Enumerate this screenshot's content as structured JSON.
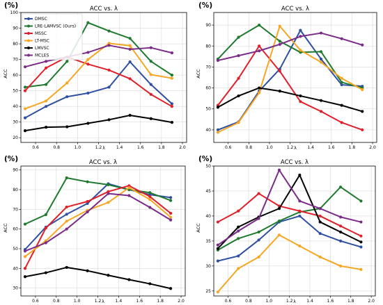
{
  "unit_label": "(%)",
  "colors": {
    "DMSC": "#2f4fa2",
    "LRE-LAMVSC (Ours)": "#1e7a2e",
    "MSSC": "#e01f2a",
    "LT-MSC": "#f5a623",
    "LMVSC": "#000000",
    "MCLES": "#7a2b87"
  },
  "chart_data": [
    {
      "type": "line",
      "title": "ACC vs. λ",
      "xlabel": "λ",
      "ylabel": "ACC",
      "x": [
        0.5,
        0.7,
        0.9,
        1.1,
        1.3,
        1.5,
        1.7,
        1.9
      ],
      "xticks": [
        0.6,
        0.8,
        1.0,
        1.2,
        1.4,
        1.6,
        1.8,
        2.0
      ],
      "xticklabels": [
        "0.6",
        "0.8",
        "1.0",
        "1.2",
        "1.4",
        "1.6",
        "1.8",
        "2.0"
      ],
      "xlim": [
        0.46,
        2.04
      ],
      "ylim": [
        17,
        100
      ],
      "yticks": [
        20,
        30,
        40,
        50,
        60,
        70,
        80,
        90,
        100
      ],
      "yticklabels": [
        "20",
        "30",
        "40",
        "50",
        "60",
        "70",
        "80",
        "90",
        "100"
      ],
      "grid": true,
      "legend": "top-left",
      "series": [
        {
          "name": "DMSC",
          "values": [
            32.7,
            40.0,
            46.2,
            48.5,
            52.3,
            68.5,
            54.0,
            41.7
          ]
        },
        {
          "name": "LRE-LAMVSC (Ours)",
          "values": [
            52.3,
            54.0,
            68.8,
            93.5,
            88.2,
            83.5,
            68.8,
            60.0
          ]
        },
        {
          "name": "MSSC",
          "values": [
            50.0,
            64.6,
            71.6,
            67.0,
            63.2,
            57.7,
            47.7,
            40.0
          ]
        },
        {
          "name": "LT-MSC",
          "values": [
            38.5,
            43.5,
            55.0,
            70.0,
            80.3,
            78.8,
            60.3,
            58.0
          ]
        },
        {
          "name": "LMVSC",
          "values": [
            24.5,
            26.7,
            27.0,
            29.2,
            31.5,
            34.3,
            32.2,
            29.8
          ]
        },
        {
          "name": "MCLES",
          "values": [
            65.3,
            68.8,
            71.6,
            74.5,
            79.0,
            76.5,
            77.5,
            74.2
          ]
        }
      ]
    },
    {
      "type": "line",
      "title": "ACC vs. λ",
      "xlabel": "λ",
      "ylabel": "ACC",
      "x": [
        0.5,
        0.7,
        0.9,
        1.1,
        1.3,
        1.5,
        1.7,
        1.9
      ],
      "xticks": [
        0.6,
        0.8,
        1.0,
        1.2,
        1.4,
        1.6,
        1.8,
        2.0
      ],
      "xticklabels": [
        "0.6",
        "0.8",
        "1.0",
        "1.2",
        "1.4",
        "1.6",
        "1.8",
        "2.0"
      ],
      "xlim": [
        0.46,
        2.04
      ],
      "ylim": [
        34,
        96
      ],
      "yticks": [
        40,
        50,
        60,
        70,
        80,
        90
      ],
      "yticklabels": [
        "40",
        "50",
        "60",
        "70",
        "80",
        "90"
      ],
      "grid": true,
      "legend": "none",
      "series": [
        {
          "name": "DMSC",
          "values": [
            40.0,
            43.8,
            58.5,
            69.0,
            87.5,
            73.8,
            61.5,
            60.8
          ]
        },
        {
          "name": "LRE-LAMVSC (Ours)",
          "values": [
            73.8,
            84.2,
            90.0,
            82.3,
            77.0,
            77.3,
            62.7,
            60.0
          ]
        },
        {
          "name": "MSSC",
          "values": [
            51.7,
            64.6,
            80.0,
            68.0,
            53.5,
            48.8,
            43.5,
            40.0
          ]
        },
        {
          "name": "LT-MSC",
          "values": [
            38.8,
            43.5,
            57.7,
            89.5,
            78.0,
            72.3,
            64.6,
            59.2
          ]
        },
        {
          "name": "LMVSC",
          "values": [
            50.8,
            56.2,
            60.0,
            58.5,
            56.2,
            54.0,
            51.7,
            48.8
          ]
        },
        {
          "name": "MCLES",
          "values": [
            73.1,
            75.4,
            77.7,
            80.8,
            84.6,
            86.2,
            83.5,
            80.5
          ]
        }
      ]
    },
    {
      "type": "line",
      "title": "ACC vs. λ",
      "xlabel": "λ",
      "ylabel": "ACC",
      "x": [
        0.5,
        0.7,
        0.9,
        1.1,
        1.3,
        1.5,
        1.7,
        1.9
      ],
      "xticks": [
        0.6,
        0.8,
        1.0,
        1.2,
        1.4,
        1.6,
        1.8,
        2.0
      ],
      "xticklabels": [
        "0.6",
        "0.8",
        "1.0",
        "1.2",
        "1.4",
        "1.6",
        "1.8",
        "2.0"
      ],
      "xlim": [
        0.46,
        2.04
      ],
      "ylim": [
        26,
        92
      ],
      "yticks": [
        30,
        40,
        50,
        60,
        70,
        80,
        90
      ],
      "yticklabels": [
        "30",
        "40",
        "50",
        "60",
        "70",
        "80",
        "90"
      ],
      "grid": true,
      "legend": "none",
      "series": [
        {
          "name": "DMSC",
          "values": [
            49.6,
            61.0,
            67.5,
            73.0,
            83.0,
            80.0,
            77.5,
            76.0
          ]
        },
        {
          "name": "LRE-LAMVSC (Ours)",
          "values": [
            62.5,
            67.3,
            86.0,
            84.0,
            82.5,
            80.0,
            78.5,
            74.5
          ]
        },
        {
          "name": "MSSC",
          "values": [
            40.0,
            60.5,
            71.2,
            74.0,
            79.0,
            82.0,
            76.5,
            68.0
          ]
        },
        {
          "name": "LT-MSC",
          "values": [
            46.0,
            54.0,
            64.0,
            69.5,
            73.5,
            81.0,
            75.0,
            66.0
          ]
        },
        {
          "name": "LMVSC",
          "values": [
            35.8,
            37.8,
            40.5,
            38.8,
            36.5,
            34.3,
            32.2,
            29.8
          ]
        },
        {
          "name": "MCLES",
          "values": [
            48.8,
            53.0,
            60.0,
            68.7,
            78.0,
            77.0,
            71.0,
            64.6
          ]
        }
      ]
    },
    {
      "type": "line",
      "title": "ACC vs. λ",
      "xlabel": "λ",
      "ylabel": "ACC",
      "x": [
        0.5,
        0.7,
        0.9,
        1.1,
        1.3,
        1.5,
        1.7,
        1.9
      ],
      "xticks": [
        0.6,
        0.8,
        1.0,
        1.2,
        1.4,
        1.6,
        1.8,
        2.0
      ],
      "xticklabels": [
        "0.6",
        "0.8",
        "1.0",
        "1.2",
        "1.4",
        "1.6",
        "1.8",
        "2.0"
      ],
      "xlim": [
        0.46,
        2.04
      ],
      "ylim": [
        24,
        50
      ],
      "yticks": [
        25,
        30,
        35,
        40,
        45,
        50
      ],
      "yticklabels": [
        "25",
        "30",
        "35",
        "40",
        "45",
        "50"
      ],
      "grid": true,
      "legend": "none",
      "series": [
        {
          "name": "DMSC",
          "values": [
            31.0,
            32.0,
            35.2,
            38.8,
            40.0,
            36.5,
            35.0,
            33.8
          ]
        },
        {
          "name": "LRE-LAMVSC (Ours)",
          "values": [
            33.2,
            35.5,
            36.8,
            39.0,
            40.8,
            41.5,
            45.8,
            43.0
          ]
        },
        {
          "name": "MSSC",
          "values": [
            38.8,
            41.0,
            44.5,
            42.0,
            41.0,
            40.0,
            38.0,
            36.0
          ]
        },
        {
          "name": "LT-MSC",
          "values": [
            24.8,
            29.5,
            31.8,
            36.2,
            34.0,
            31.8,
            30.0,
            29.3
          ]
        },
        {
          "name": "LMVSC",
          "values": [
            33.5,
            37.8,
            39.8,
            41.5,
            48.2,
            38.8,
            36.8,
            34.8
          ]
        },
        {
          "name": "MCLES",
          "values": [
            34.2,
            37.0,
            39.5,
            49.2,
            43.0,
            41.5,
            39.8,
            38.8
          ]
        }
      ]
    }
  ]
}
